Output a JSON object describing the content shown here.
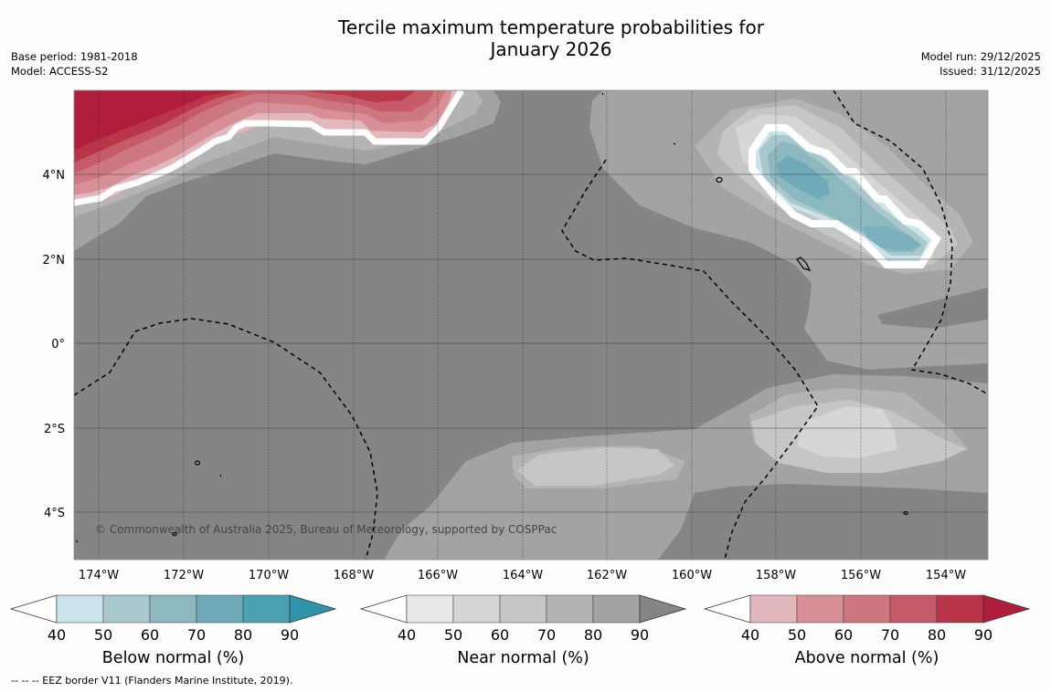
{
  "title_line1": "Tercile maximum temperature probabilities for",
  "title_line2": "January 2026",
  "base_period": "Base period: 1981-2018",
  "model": "Model: ACCESS-S2",
  "model_run": "Model run: 29/12/2025",
  "issued": "Issued: 31/12/2025",
  "map": {
    "lon_labels": [
      "174°W",
      "172°W",
      "170°W",
      "168°W",
      "166°W",
      "164°W",
      "162°W",
      "160°W",
      "158°W",
      "156°W",
      "154°W"
    ],
    "lat_labels": [
      "4°N",
      "2°N",
      "0°",
      "2°S",
      "4°S"
    ],
    "copyright": "© Commonwealth of Australia 2025, Bureau of Meteorology, supported by COSPPac"
  },
  "colorbars": [
    {
      "label": "Below normal (%)",
      "ticks": [
        "40",
        "50",
        "60",
        "70",
        "80",
        "90"
      ],
      "colors": [
        "#ffffff",
        "#cbe3ea",
        "#a9c8cd",
        "#8cb8bf",
        "#6eaab8",
        "#4a9fb1",
        "#2f93a9"
      ]
    },
    {
      "label": "Near normal (%)",
      "ticks": [
        "40",
        "50",
        "60",
        "70",
        "80",
        "90"
      ],
      "colors": [
        "#ffffff",
        "#e8e8e8",
        "#d6d6d6",
        "#c6c6c6",
        "#b4b4b4",
        "#a3a3a3",
        "#858585"
      ]
    },
    {
      "label": "Above normal (%)",
      "ticks": [
        "40",
        "50",
        "60",
        "70",
        "80",
        "90"
      ],
      "colors": [
        "#ffffff",
        "#e3b8bd",
        "#d78f98",
        "#cd7780",
        "#c55b68",
        "#bb3549",
        "#b11e3c"
      ]
    }
  ],
  "footnote": "--  --  -- EEZ border V11 (Flanders Marine Institute, 2019)."
}
